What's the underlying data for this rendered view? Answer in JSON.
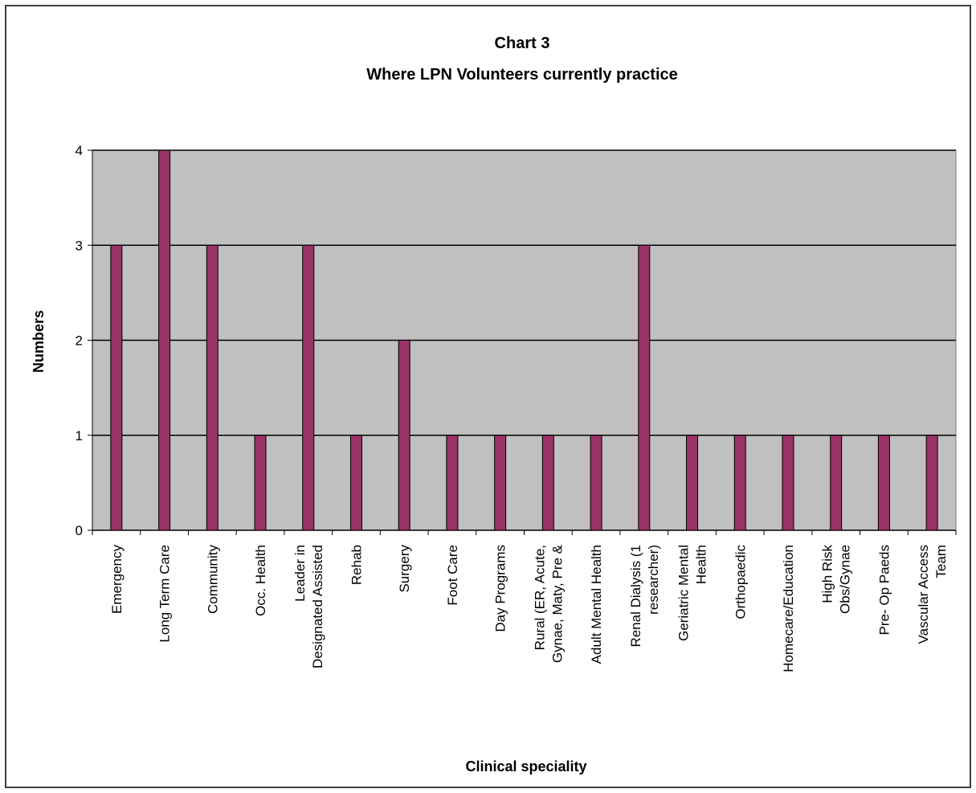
{
  "chart_data": {
    "type": "bar",
    "title": "Chart 3",
    "subtitle": "Where LPN Volunteers currently practice",
    "x_label": "Clinical speciality",
    "y_label": "Numbers",
    "categories": [
      "Emergency",
      "Long Term Care",
      "Community",
      "Occ. Health",
      "Leader in\nDesignated Assisted",
      "Rehab",
      "Surgery",
      "Foot Care",
      "Day Programs",
      "Rural (ER, Acute,\nGynae, Maty, Pre &",
      "Adult Mental Health",
      "Renal Dialysis (1\nresearcher)",
      "Geriatric Mental\nHealth",
      "Orthopaedic",
      "Homecare/Education",
      "High Risk\nObs/Gynae",
      "Pre- Op Paeds",
      "Vascular Access\nTeam"
    ],
    "values": [
      3,
      4,
      3,
      1,
      3,
      1,
      2,
      1,
      1,
      1,
      1,
      3,
      1,
      1,
      1,
      1,
      1,
      1
    ],
    "color": "#993366",
    "plot_background": "#c0c0c0",
    "ylim": [
      0,
      4
    ],
    "yticks": [
      0,
      1,
      2,
      3,
      4
    ],
    "grid": true
  }
}
